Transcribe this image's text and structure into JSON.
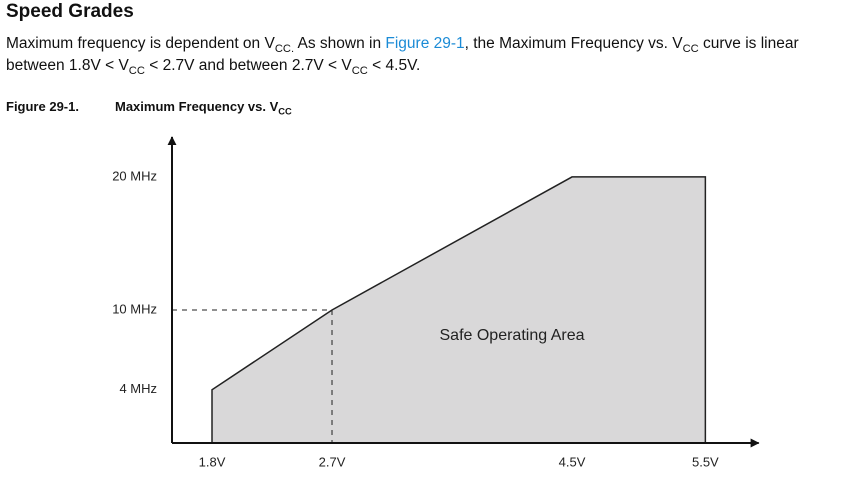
{
  "heading": "Speed Grades",
  "paragraph": [
    "Maximum frequency is dependent on V",
    "CC.",
    " As shown in ",
    "Figure 29-1",
    ", the Maximum Frequency vs. V",
    "CC",
    " curve is linear between 1.8V < V",
    "CC",
    " < 2.7V and between 2.7V < V",
    "CC",
    " < 4.5V."
  ],
  "caption": {
    "number": "Figure 29-1.",
    "title": [
      "Maximum Frequency vs. V",
      "CC"
    ]
  },
  "chart_data": {
    "type": "area",
    "series": [
      {
        "name": "Safe Operating Area",
        "color": "#d9d8d9",
        "x": [
          1.8,
          1.8,
          2.7,
          4.5,
          5.5,
          5.5
        ],
        "values": [
          0,
          4,
          10,
          20,
          20,
          0
        ]
      }
    ],
    "annotation": "Safe Operating Area",
    "xlim": [
      1.5,
      5.9
    ],
    "xticks": [
      {
        "value": 1.8,
        "label": "1.8V"
      },
      {
        "value": 2.7,
        "label": "2.7V"
      },
      {
        "value": 4.5,
        "label": "4.5V"
      },
      {
        "value": 5.5,
        "label": "5.5V"
      }
    ],
    "ylim": [
      0,
      23
    ],
    "yticks": [
      {
        "value": 4,
        "label": "4 MHz"
      },
      {
        "value": 10,
        "label": "10 MHz"
      },
      {
        "value": 20,
        "label": "20 MHz"
      }
    ]
  }
}
